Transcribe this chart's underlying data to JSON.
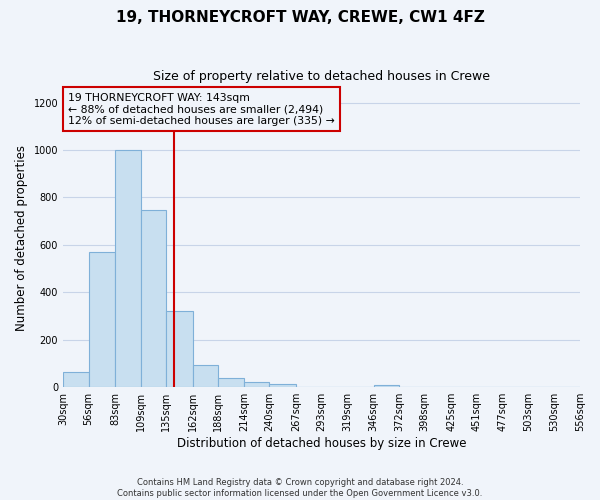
{
  "title": "19, THORNEYCROFT WAY, CREWE, CW1 4FZ",
  "subtitle": "Size of property relative to detached houses in Crewe",
  "xlabel": "Distribution of detached houses by size in Crewe",
  "ylabel": "Number of detached properties",
  "bar_edges": [
    30,
    56,
    83,
    109,
    135,
    162,
    188,
    214,
    240,
    267,
    293,
    319,
    346,
    372,
    398,
    425,
    451,
    477,
    503,
    530,
    556
  ],
  "bar_heights": [
    65,
    570,
    1000,
    745,
    320,
    95,
    40,
    20,
    15,
    0,
    0,
    0,
    10,
    0,
    0,
    0,
    0,
    0,
    0,
    0
  ],
  "bar_color": "#c8dff0",
  "bar_edge_color": "#7fb0d8",
  "property_size": 143,
  "vline_color": "#cc0000",
  "annotation_box_edge_color": "#cc0000",
  "annotation_line1": "19 THORNEYCROFT WAY: 143sqm",
  "annotation_line2": "← 88% of detached houses are smaller (2,494)",
  "annotation_line3": "12% of semi-detached houses are larger (335) →",
  "ylim": [
    0,
    1260
  ],
  "yticks": [
    0,
    200,
    400,
    600,
    800,
    1000,
    1200
  ],
  "footer_line1": "Contains HM Land Registry data © Crown copyright and database right 2024.",
  "footer_line2": "Contains public sector information licensed under the Open Government Licence v3.0.",
  "bg_color": "#f0f4fa",
  "grid_color": "#c8d4e8",
  "title_fontsize": 11,
  "subtitle_fontsize": 9,
  "axis_label_fontsize": 8.5,
  "tick_fontsize": 7,
  "footer_fontsize": 6
}
